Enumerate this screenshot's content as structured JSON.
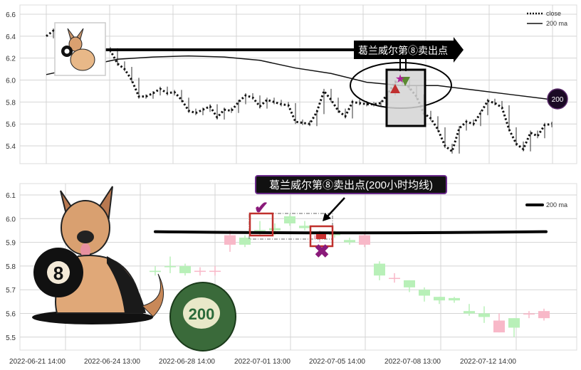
{
  "chart_data": [
    {
      "type": "line",
      "panel": "top",
      "ylim": [
        5.28,
        6.72
      ],
      "yticks": [
        "5.4",
        "5.6",
        "5.8",
        "6.0",
        "6.2",
        "6.4",
        "6.6"
      ],
      "grid": true,
      "legend": {
        "placement": "top-right",
        "entries": [
          "close",
          "200 ma"
        ]
      },
      "series": [
        {
          "name": "close",
          "style": "dotted",
          "values": [
            6.4,
            6.45,
            6.38,
            6.35,
            6.33,
            6.31,
            6.3,
            6.29,
            6.28,
            6.27,
            6.15,
            6.1,
            6.0,
            5.85,
            5.85,
            5.88,
            5.92,
            5.88,
            5.89,
            5.82,
            5.72,
            5.7,
            5.73,
            5.76,
            5.66,
            5.73,
            5.72,
            5.8,
            5.86,
            5.84,
            5.76,
            5.82,
            5.8,
            5.78,
            5.77,
            5.62,
            5.61,
            5.6,
            5.71,
            5.9,
            5.82,
            5.72,
            5.67,
            5.8,
            5.79,
            5.78,
            5.78,
            5.79,
            5.88,
            5.98,
            6.0,
            5.93,
            5.85,
            5.7,
            5.65,
            5.55,
            5.4,
            5.35,
            5.56,
            5.62,
            5.6,
            5.7,
            5.81,
            5.79,
            5.75,
            5.55,
            5.42,
            5.37,
            5.52,
            5.49,
            5.59,
            5.6
          ]
        },
        {
          "name": "200 ma",
          "style": "solid",
          "values": [
            6.05,
            6.12,
            6.19,
            6.21,
            6.22,
            6.21,
            6.18,
            6.11,
            6.06,
            5.98,
            5.95,
            5.95,
            5.91,
            5.87,
            5.83
          ]
        }
      ],
      "annotations": {
        "sell_label": "葛兰威尔第⑧卖出点",
        "ma_badge": "200"
      },
      "colors": {
        "badge": "#1a0a24",
        "star": "#b0209a",
        "down_triangle": "#5a8a30",
        "up_triangle": "#c03030",
        "highlight_box": "#d3d3d3"
      }
    },
    {
      "type": "candlestick",
      "panel": "bottom",
      "ylim": [
        5.45,
        6.12
      ],
      "yticks": [
        "5.5",
        "5.6",
        "5.7",
        "5.8",
        "5.9",
        "6.0",
        "6.1"
      ],
      "xticks": [
        "2022-06-21 14:00",
        "2022-06-24 13:00",
        "2022-06-28 14:00",
        "2022-07-01 13:00",
        "2022-07-05 14:00",
        "2022-07-08 13:00",
        "2022-07-12 14:00"
      ],
      "grid": true,
      "legend": {
        "placement": "top-right",
        "entries": [
          "200 ma"
        ]
      },
      "candles": [
        {
          "o": 5.775,
          "c": 5.78,
          "l": 5.76,
          "h": 5.8
        },
        {
          "o": 5.795,
          "c": 5.8,
          "l": 5.77,
          "h": 5.84
        },
        {
          "o": 5.77,
          "c": 5.8,
          "l": 5.76,
          "h": 5.81
        },
        {
          "o": 5.78,
          "c": 5.778,
          "l": 5.76,
          "h": 5.795
        },
        {
          "o": 5.78,
          "c": 5.778,
          "l": 5.76,
          "h": 5.8
        },
        {
          "o": 5.93,
          "c": 5.89,
          "l": 5.86,
          "h": 5.95
        },
        {
          "o": 5.89,
          "c": 5.92,
          "l": 5.88,
          "h": 5.93
        },
        {
          "o": 5.95,
          "c": 5.952,
          "l": 5.93,
          "h": 5.99
        },
        {
          "o": 5.95,
          "c": 5.96,
          "l": 5.93,
          "h": 5.98
        },
        {
          "o": 5.98,
          "c": 6.01,
          "l": 5.97,
          "h": 6.02
        },
        {
          "o": 5.96,
          "c": 5.97,
          "l": 5.95,
          "h": 5.99
        },
        {
          "o": 5.93,
          "c": 5.915,
          "l": 5.9,
          "h": 5.95
        },
        {
          "o": 5.93,
          "c": 5.94,
          "l": 5.92,
          "h": 5.95
        },
        {
          "o": 5.9,
          "c": 5.91,
          "l": 5.89,
          "h": 5.92
        },
        {
          "o": 5.93,
          "c": 5.89,
          "l": 5.88,
          "h": 5.94
        },
        {
          "o": 5.76,
          "c": 5.81,
          "l": 5.74,
          "h": 5.82
        },
        {
          "o": 5.75,
          "c": 5.748,
          "l": 5.73,
          "h": 5.77
        },
        {
          "o": 5.71,
          "c": 5.74,
          "l": 5.69,
          "h": 5.74
        },
        {
          "o": 5.675,
          "c": 5.7,
          "l": 5.65,
          "h": 5.71
        },
        {
          "o": 5.655,
          "c": 5.67,
          "l": 5.64,
          "h": 5.67
        },
        {
          "o": 5.655,
          "c": 5.665,
          "l": 5.645,
          "h": 5.67
        },
        {
          "o": 5.6,
          "c": 5.61,
          "l": 5.59,
          "h": 5.64
        },
        {
          "o": 5.585,
          "c": 5.6,
          "l": 5.56,
          "h": 5.63
        },
        {
          "o": 5.57,
          "c": 5.52,
          "l": 5.52,
          "h": 5.6
        },
        {
          "o": 5.54,
          "c": 5.58,
          "l": 5.5,
          "h": 5.58
        },
        {
          "o": 5.6,
          "c": 5.598,
          "l": 5.58,
          "h": 5.61
        },
        {
          "o": 5.61,
          "c": 5.58,
          "l": 5.57,
          "h": 5.62
        }
      ],
      "ma_value": 5.945,
      "annotations": {
        "sell_label": "葛兰威尔第⑧卖出点(200小时均线)",
        "ball_label": "200",
        "dog_ball_label": "8"
      },
      "colors": {
        "up": "#b8f0b8",
        "down": "#f8b8c8",
        "highlight_box": "#c0302c",
        "check": "#8a1a7a",
        "cross": "#8a1a7a",
        "label_bg": "#111111",
        "label_border": "#6a2a8a",
        "ball": "#3a6a3a"
      }
    }
  ]
}
